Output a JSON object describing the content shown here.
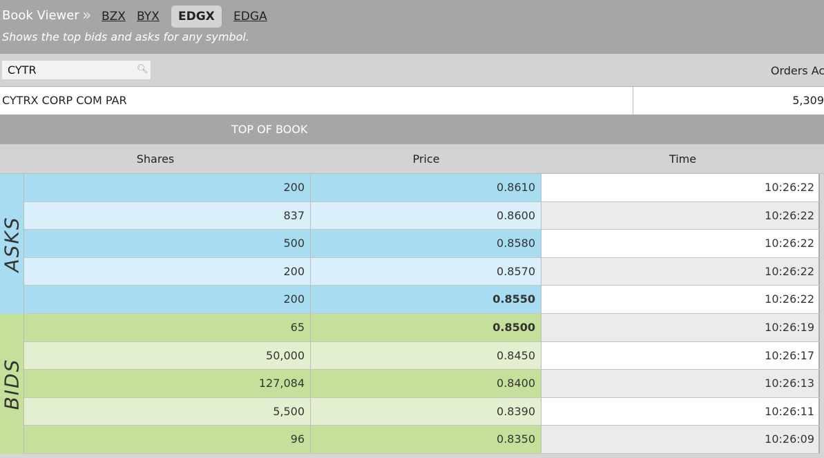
{
  "header": {
    "title": "Book Viewer",
    "separator_icon": "double-chevron-right",
    "tabs": [
      {
        "label": "BZX",
        "active": false
      },
      {
        "label": "BYX",
        "active": false
      },
      {
        "label": "EDGX",
        "active": true
      },
      {
        "label": "EDGA",
        "active": false
      }
    ],
    "subtitle": "Shows the top bids and asks for any symbol."
  },
  "search": {
    "value": "CYTR",
    "icon": "search-icon"
  },
  "orders_label": "Orders Acc",
  "symbol_name": "CYTRX CORP COM PAR",
  "orders_value": "5,309",
  "section_title": "TOP OF BOOK",
  "columns": [
    "Shares",
    "Price",
    "Time"
  ],
  "asks_label": "ASKS",
  "bids_label": "BIDS",
  "colors": {
    "ask_dark": "#a8dcf0",
    "ask_light": "#d9f0fa",
    "bid_dark": "#c4e09a",
    "bid_light": "#e2f0d0"
  },
  "asks": [
    {
      "shares": "200",
      "price": "0.8610",
      "time": "10:26:22"
    },
    {
      "shares": "837",
      "price": "0.8600",
      "time": "10:26:22"
    },
    {
      "shares": "500",
      "price": "0.8580",
      "time": "10:26:22"
    },
    {
      "shares": "200",
      "price": "0.8570",
      "time": "10:26:22"
    },
    {
      "shares": "200",
      "price": "0.8550",
      "time": "10:26:22",
      "best": true
    }
  ],
  "bids": [
    {
      "shares": "65",
      "price": "0.8500",
      "time": "10:26:19",
      "best": true
    },
    {
      "shares": "50,000",
      "price": "0.8450",
      "time": "10:26:17"
    },
    {
      "shares": "127,084",
      "price": "0.8400",
      "time": "10:26:13"
    },
    {
      "shares": "5,500",
      "price": "0.8390",
      "time": "10:26:11"
    },
    {
      "shares": "96",
      "price": "0.8350",
      "time": "10:26:09"
    }
  ]
}
